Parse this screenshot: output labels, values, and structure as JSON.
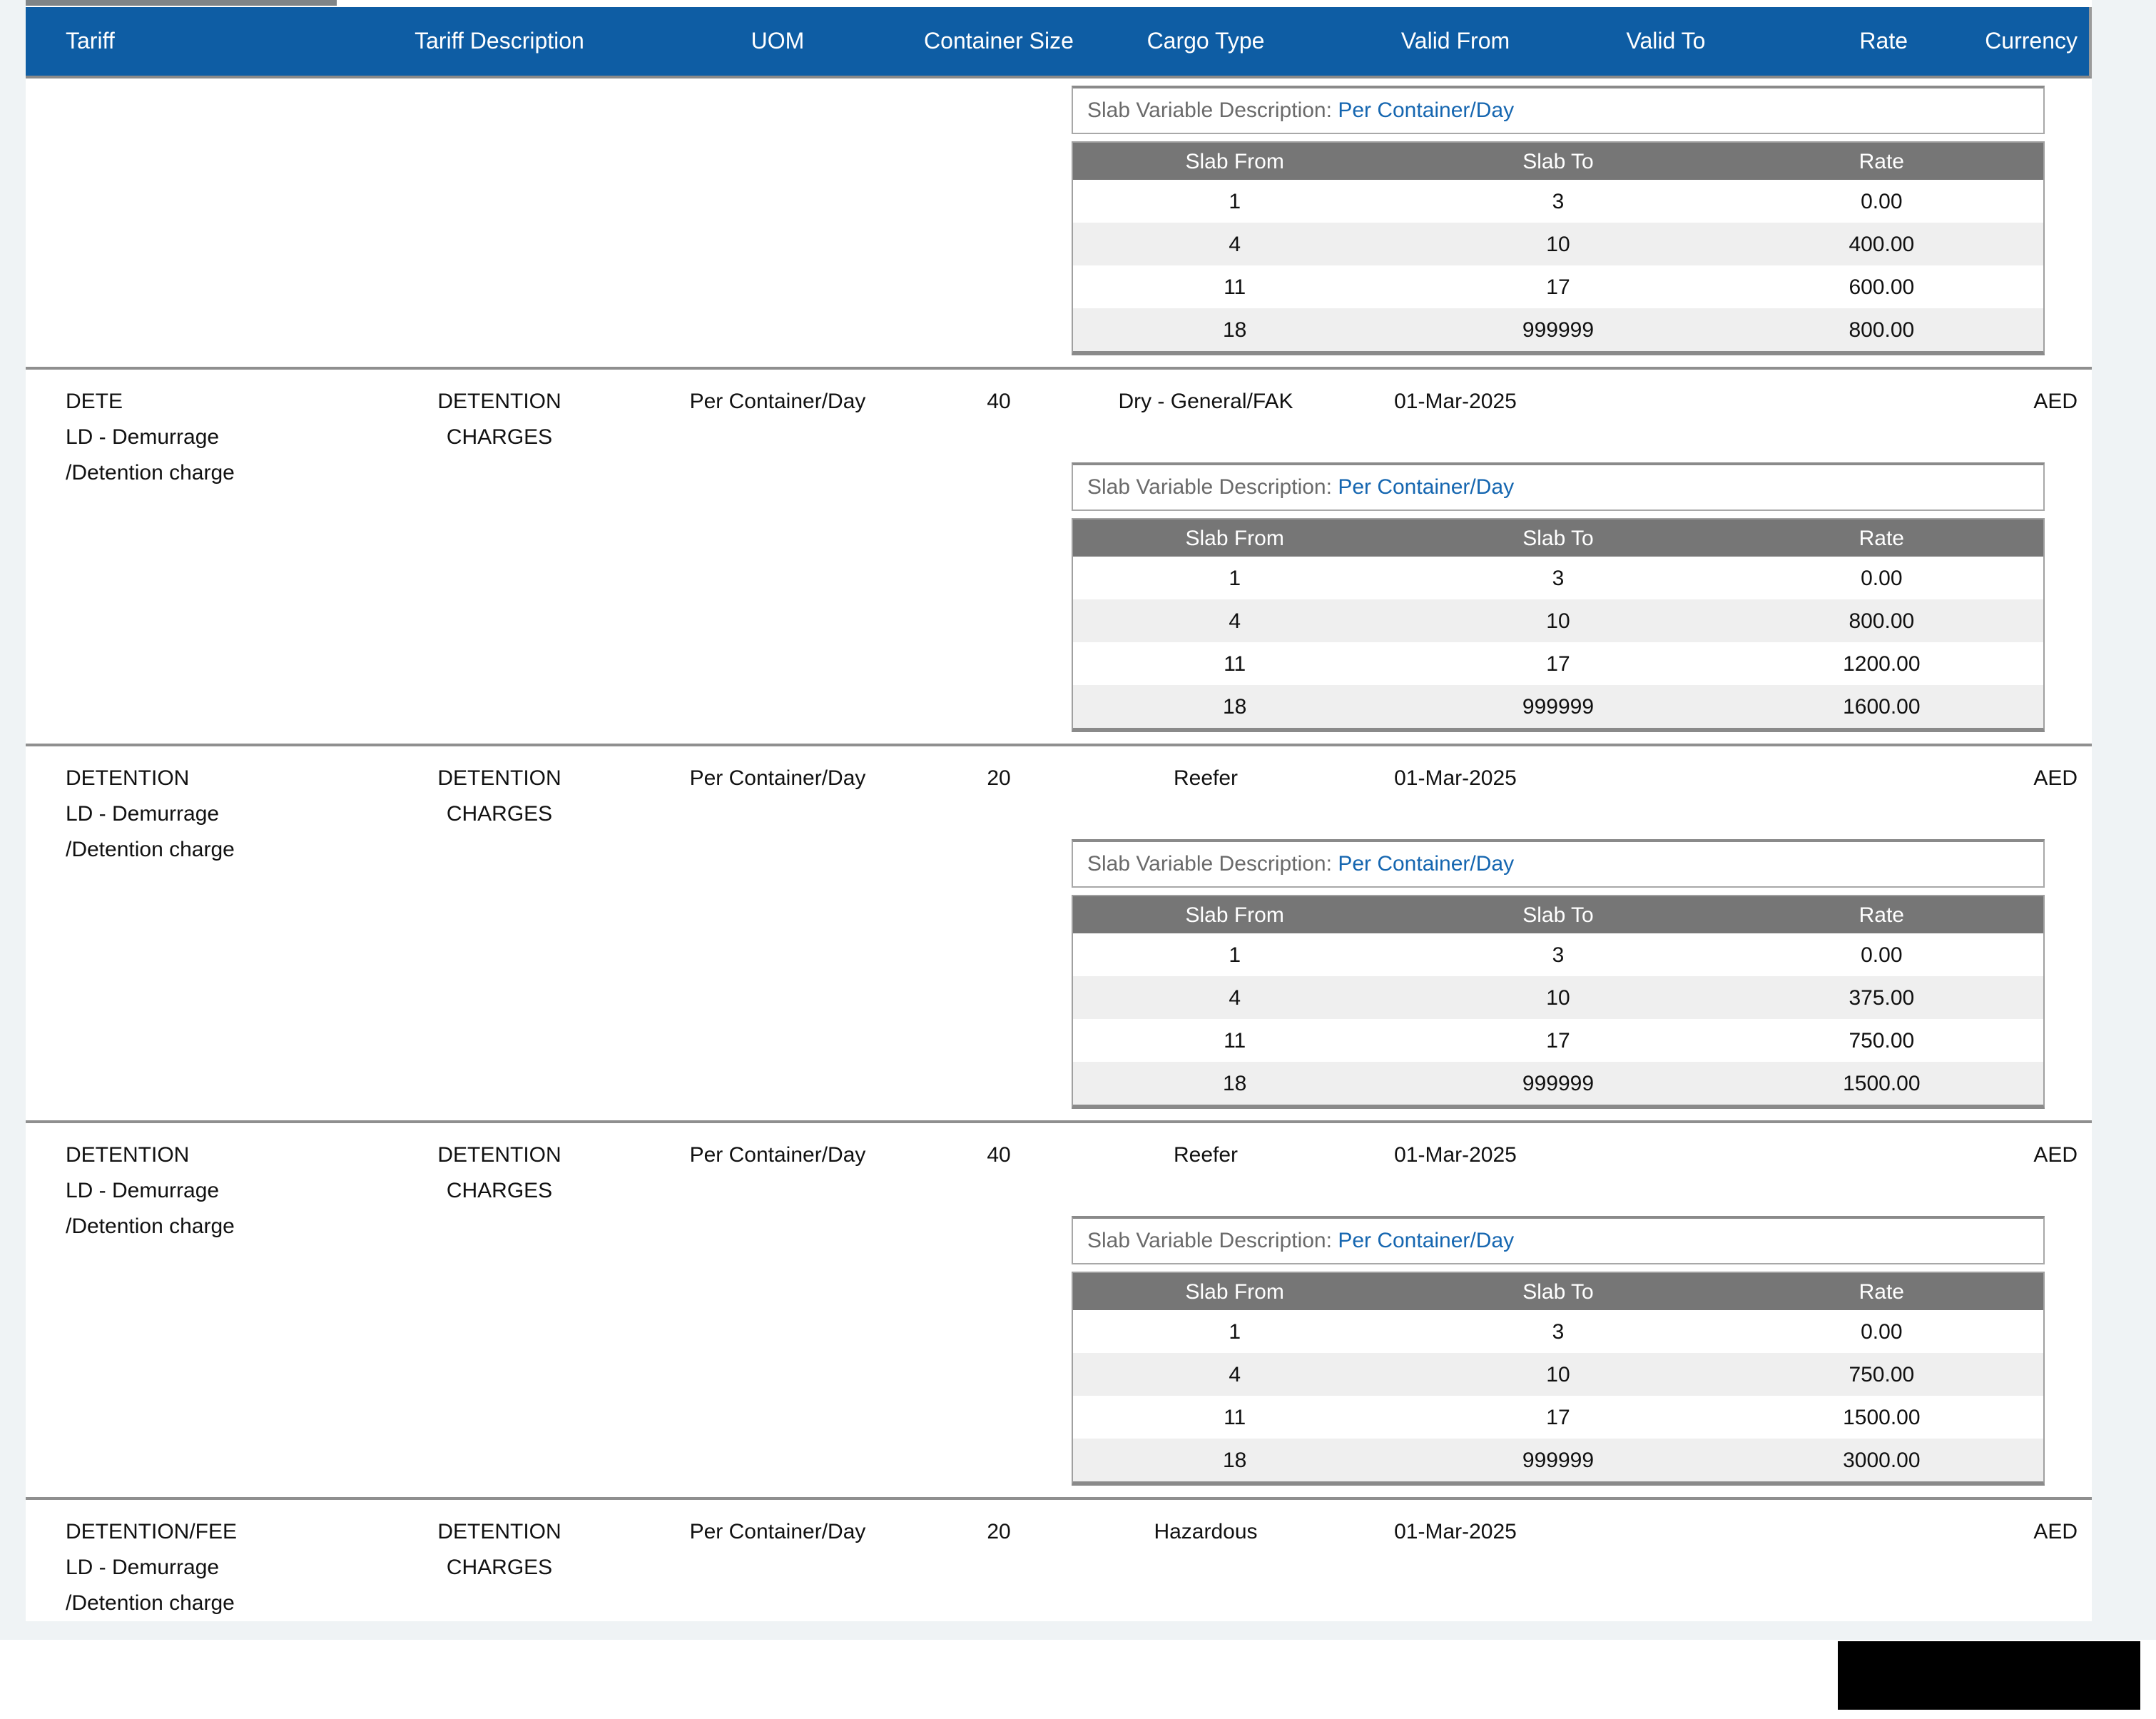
{
  "page": {
    "background_color": "#eff3f5"
  },
  "table": {
    "header": {
      "background_color": "#0e5da4",
      "columns": [
        "Tariff",
        "Tariff Description",
        "UOM",
        "Container Size",
        "Cargo Type",
        "Valid From",
        "Valid To",
        "Rate",
        "Currency"
      ]
    },
    "slab": {
      "description_label": "Slab Variable Description:",
      "columns": [
        "Slab From",
        "Slab To",
        "Rate"
      ],
      "header_background_color": "#767676",
      "link_color": "#1566b0"
    },
    "rows": [
      {
        "tariff_lines": [],
        "description_lines": [],
        "uom": "",
        "container_size": "",
        "cargo_type": "",
        "valid_from": "",
        "valid_to": "",
        "rate": "",
        "currency": "",
        "slab_description_value": "Per Container/Day",
        "slab_rows": [
          [
            "1",
            "3",
            "0.00"
          ],
          [
            "4",
            "10",
            "400.00"
          ],
          [
            "11",
            "17",
            "600.00"
          ],
          [
            "18",
            "999999",
            "800.00"
          ]
        ]
      },
      {
        "tariff_lines": [
          "DETE",
          "LD - Demurrage",
          "/Detention charge"
        ],
        "description_lines": [
          "DETENTION",
          "CHARGES"
        ],
        "uom": "Per Container/Day",
        "container_size": "40",
        "cargo_type": "Dry - General/FAK",
        "valid_from": "01-Mar-2025",
        "valid_to": "",
        "rate": "",
        "currency": "AED",
        "slab_description_value": "Per Container/Day",
        "slab_rows": [
          [
            "1",
            "3",
            "0.00"
          ],
          [
            "4",
            "10",
            "800.00"
          ],
          [
            "11",
            "17",
            "1200.00"
          ],
          [
            "18",
            "999999",
            "1600.00"
          ]
        ]
      },
      {
        "tariff_lines": [
          "DETENTION",
          "LD - Demurrage",
          "/Detention charge"
        ],
        "description_lines": [
          "DETENTION",
          "CHARGES"
        ],
        "uom": "Per Container/Day",
        "container_size": "20",
        "cargo_type": "Reefer",
        "valid_from": "01-Mar-2025",
        "valid_to": "",
        "rate": "",
        "currency": "AED",
        "slab_description_value": "Per Container/Day",
        "slab_rows": [
          [
            "1",
            "3",
            "0.00"
          ],
          [
            "4",
            "10",
            "375.00"
          ],
          [
            "11",
            "17",
            "750.00"
          ],
          [
            "18",
            "999999",
            "1500.00"
          ]
        ]
      },
      {
        "tariff_lines": [
          "DETENTION",
          "LD - Demurrage",
          "/Detention charge"
        ],
        "description_lines": [
          "DETENTION",
          "CHARGES"
        ],
        "uom": "Per Container/Day",
        "container_size": "40",
        "cargo_type": "Reefer",
        "valid_from": "01-Mar-2025",
        "valid_to": "",
        "rate": "",
        "currency": "AED",
        "slab_description_value": "Per Container/Day",
        "slab_rows": [
          [
            "1",
            "3",
            "0.00"
          ],
          [
            "4",
            "10",
            "750.00"
          ],
          [
            "11",
            "17",
            "1500.00"
          ],
          [
            "18",
            "999999",
            "3000.00"
          ]
        ]
      },
      {
        "tariff_lines": [
          "DETENTION/FEE",
          "LD - Demurrage",
          "/Detention charge"
        ],
        "description_lines": [
          "DETENTION",
          "CHARGES"
        ],
        "uom": "Per Container/Day",
        "container_size": "20",
        "cargo_type": "Hazardous",
        "valid_from": "01-Mar-2025",
        "valid_to": "",
        "rate": "",
        "currency": "AED",
        "slab_description_value": null,
        "slab_rows": null
      }
    ]
  },
  "redaction": {
    "color": "#000000"
  }
}
